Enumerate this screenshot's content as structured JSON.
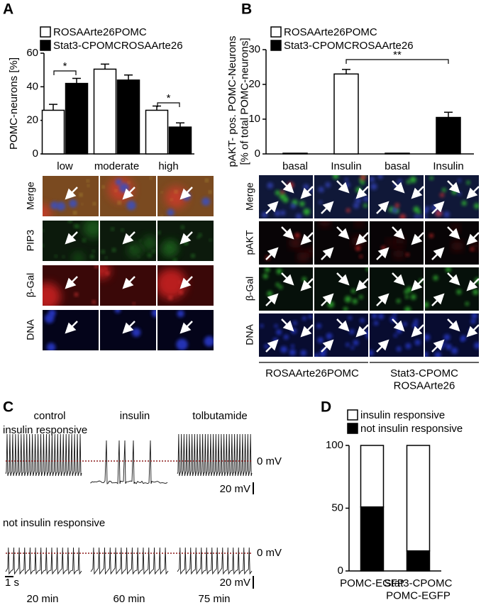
{
  "panels": [
    "A",
    "B",
    "C",
    "D"
  ],
  "chart_data": [
    {
      "type": "bar",
      "ylabel": "POMC-neurons [%]",
      "categories": [
        "low",
        "moderate",
        "high"
      ],
      "series": [
        {
          "name": "ROSAArte26POMC",
          "color": "#ffffff",
          "values": [
            26,
            50.5,
            26
          ],
          "errors": [
            3.5,
            3,
            2.5
          ]
        },
        {
          "name": "Stat3-CPOMCROSAArte26",
          "color": "#000000",
          "values": [
            42,
            44,
            16
          ],
          "errors": [
            3,
            3,
            2.5
          ]
        }
      ],
      "annotations": [
        "*",
        "*"
      ],
      "ylim": [
        0,
        60
      ],
      "yticks": [
        0,
        20,
        40,
        60
      ]
    },
    {
      "type": "bar",
      "ylabel": "pAKT- pos. POMC-Neurons\n[% of total POMC-neurons]",
      "categories": [
        "basal",
        "Insulin",
        "basal",
        "Insulin"
      ],
      "series": [
        {
          "name": "ROSAArte26POMC",
          "color": "#ffffff",
          "values": [
            0.2,
            23,
            null,
            null
          ],
          "errors": [
            null,
            1.3,
            null,
            null
          ]
        },
        {
          "name": "Stat3-CPOMCROSAArte26",
          "color": "#000000",
          "values": [
            null,
            null,
            0.2,
            10.5
          ],
          "errors": [
            null,
            null,
            null,
            1.5
          ]
        }
      ],
      "annotations": [
        "**"
      ],
      "ylim": [
        0,
        30
      ],
      "yticks": [
        0,
        10,
        20,
        30
      ]
    },
    {
      "type": "stacked_bar",
      "categories": [
        "POMC-EGFP",
        "Stat3-CPOMC\nPOMC-EGFP"
      ],
      "series": [
        {
          "name": "not insulin responsive",
          "color": "#000000",
          "values": [
            51,
            16
          ]
        },
        {
          "name": "insulin responsive",
          "color": "#ffffff",
          "values": [
            49,
            84
          ]
        }
      ],
      "ylim": [
        0,
        100
      ],
      "yticks": [
        0,
        50,
        100
      ]
    }
  ],
  "micrographs": {
    "A_rows": [
      "Merge",
      "PIP3",
      "β-Gal",
      "DNA"
    ],
    "B_rows": [
      "Merge",
      "pAKT",
      "β-Gal",
      "DNA"
    ],
    "B_groups": [
      "ROSAArte26POMC",
      "Stat3-CPOMC\nROSAArte26"
    ]
  },
  "traces": {
    "conditions": [
      "control",
      "insulin",
      "tolbutamide"
    ],
    "rows": [
      "insulin responsive",
      "not insulin responsive"
    ],
    "zero_label": "0 mV",
    "voltage_scale": "20 mV",
    "time_scale": "1 s",
    "times": [
      "20 min",
      "60 min",
      "75 min"
    ]
  }
}
